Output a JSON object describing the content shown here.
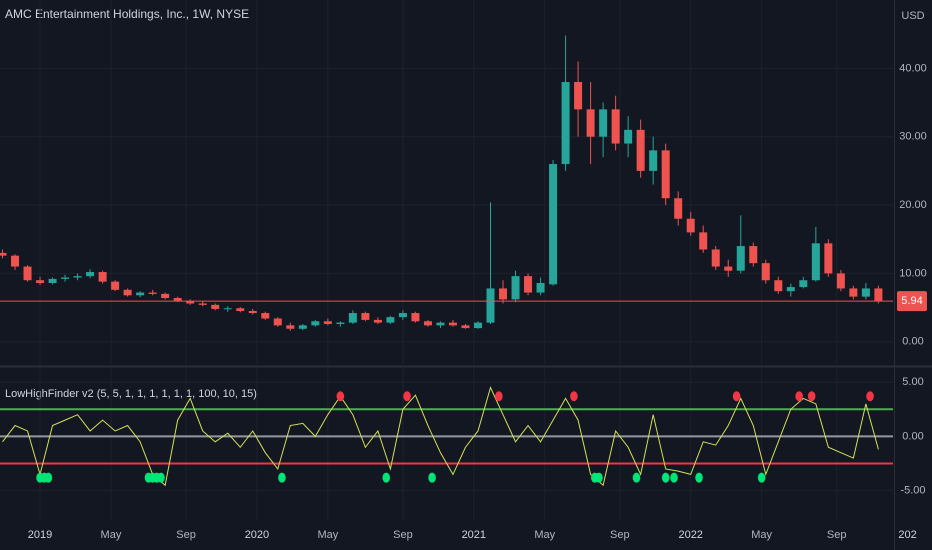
{
  "chart_data": [
    {
      "type": "candlestick",
      "title": "AMC Entertainment Holdings, Inc., 1W, NYSE",
      "currency": "USD",
      "x": [
        -9,
        -6,
        -3,
        0,
        3,
        6,
        9,
        12,
        15,
        18,
        21,
        24,
        27,
        30,
        33,
        36,
        39,
        42,
        45,
        48,
        51,
        54,
        57,
        60,
        63,
        66,
        69,
        72,
        75,
        78,
        81,
        84,
        87,
        90,
        93,
        96,
        99,
        102,
        105,
        108,
        111,
        114,
        117,
        120,
        123,
        126,
        129,
        132,
        135,
        138,
        141,
        144,
        147,
        150,
        153,
        156,
        159,
        162,
        165,
        168,
        171,
        174,
        177,
        180,
        183,
        186,
        189,
        192,
        195,
        198,
        201
      ],
      "open": [
        13,
        12.6,
        11,
        9,
        8.6,
        9.2,
        9.4,
        9.6,
        10.2,
        8.8,
        7.6,
        6.8,
        7.2,
        7,
        6.4,
        6,
        5.6,
        5.4,
        4.8,
        4.9,
        4.5,
        4.2,
        3.4,
        2.4,
        1.9,
        2.4,
        3,
        2.6,
        2.8,
        4.2,
        3.2,
        2.8,
        3.6,
        4.2,
        3,
        2.4,
        2.8,
        2.4,
        2,
        2.8,
        7.8,
        6.2,
        9.6,
        7.2,
        8.4,
        26,
        38,
        34,
        30,
        34,
        29,
        31,
        25,
        28,
        21,
        18,
        16,
        13.5,
        11,
        10.4,
        14,
        11.5,
        9,
        7.4,
        8,
        9,
        14.4,
        10,
        7.8,
        6.6,
        7.8
      ],
      "high": [
        13.5,
        12.8,
        11.2,
        9.5,
        9.4,
        9.8,
        10,
        10.6,
        10.4,
        9,
        7.8,
        7.4,
        7.6,
        7.2,
        6.6,
        6.2,
        5.9,
        5.6,
        5.2,
        5.1,
        4.8,
        4.4,
        3.6,
        2.8,
        2.6,
        3.2,
        3.4,
        3,
        4.6,
        4.4,
        3.6,
        3.8,
        4.6,
        4.4,
        3.2,
        3,
        3.2,
        2.6,
        3,
        20.4,
        9,
        10.4,
        10,
        9.4,
        26.6,
        44.8,
        41,
        38,
        35,
        36,
        33,
        32.5,
        30,
        29,
        22,
        19,
        17,
        14,
        12,
        18.5,
        14.5,
        12,
        9.5,
        8.5,
        9.5,
        16.8,
        15,
        10.5,
        8.2,
        8.6,
        8.2
      ],
      "low": [
        12.2,
        10.5,
        8.8,
        8.3,
        8.4,
        8.8,
        9,
        9.3,
        8.5,
        7.4,
        6.6,
        6.5,
        6.8,
        6.2,
        5.8,
        5.4,
        5.2,
        4.6,
        4.4,
        4.3,
        4,
        3.2,
        2.2,
        1.6,
        1.7,
        2.2,
        2.4,
        2.2,
        2.6,
        3,
        2.6,
        2.6,
        3.2,
        2.8,
        2.2,
        2,
        2.2,
        1.9,
        1.9,
        2.6,
        5.6,
        5.8,
        6.8,
        6.8,
        8.2,
        25,
        30,
        26,
        27,
        28,
        27,
        24,
        23,
        20,
        17,
        15.5,
        13,
        10.5,
        9.5,
        10,
        11,
        8.5,
        7,
        6.6,
        7.8,
        8.8,
        9.5,
        7.4,
        6.2,
        6.2,
        5.6
      ],
      "close": [
        12.6,
        11,
        9,
        8.6,
        9.2,
        9.4,
        9.6,
        10.2,
        8.8,
        7.6,
        6.8,
        7.2,
        7,
        6.4,
        6,
        5.6,
        5.4,
        4.8,
        4.9,
        4.5,
        4.2,
        3.4,
        2.4,
        1.9,
        2.4,
        3,
        2.6,
        2.8,
        4.2,
        3.2,
        2.8,
        3.6,
        4.2,
        3,
        2.4,
        2.8,
        2.4,
        2,
        2.8,
        7.8,
        6.2,
        9.6,
        7.2,
        8.6,
        26,
        38,
        34,
        30,
        34,
        29,
        31,
        25,
        28,
        21,
        18,
        16,
        13.5,
        11,
        10.4,
        14,
        11.5,
        9,
        7.4,
        8,
        9,
        14.4,
        10,
        7.8,
        6.6,
        7.8,
        5.94
      ],
      "up_color": "#26a69a",
      "down_color": "#ef5350",
      "last_price": 5.94,
      "xlim": [
        -9.6,
        204.5
      ],
      "xticks": [
        {
          "value": 0,
          "label": "2019"
        },
        {
          "value": 17,
          "label": "May"
        },
        {
          "value": 35,
          "label": "Sep"
        },
        {
          "value": 52,
          "label": "2020"
        },
        {
          "value": 69,
          "label": "May"
        },
        {
          "value": 87,
          "label": "Sep"
        },
        {
          "value": 104,
          "label": "2021"
        },
        {
          "value": 121,
          "label": "May"
        },
        {
          "value": 139,
          "label": "Sep"
        },
        {
          "value": 156,
          "label": "2022"
        },
        {
          "value": 173,
          "label": "May"
        },
        {
          "value": 191,
          "label": "Sep"
        },
        {
          "value": 208,
          "label": "202"
        }
      ],
      "ylim": [
        -3.4,
        50
      ],
      "yticks": [
        {
          "value": 0,
          "label": "0.00"
        },
        {
          "value": 10,
          "label": "10.00"
        },
        {
          "value": 20,
          "label": "20.00"
        },
        {
          "value": 30,
          "label": "30.00"
        },
        {
          "value": 40,
          "label": "40.00"
        }
      ],
      "grid": true
    },
    {
      "type": "line",
      "title": "LowHighFinder v2 (5, 5, 1, 1, 1, 1, 1, 1, 100, 10, 15)",
      "x": [
        -9,
        -6,
        -3,
        0,
        3,
        6,
        9,
        12,
        15,
        18,
        21,
        24,
        27,
        30,
        33,
        36,
        39,
        42,
        45,
        48,
        51,
        54,
        57,
        60,
        63,
        66,
        69,
        72,
        75,
        78,
        81,
        84,
        87,
        90,
        93,
        96,
        99,
        102,
        105,
        108,
        111,
        114,
        117,
        120,
        123,
        126,
        129,
        132,
        135,
        138,
        141,
        144,
        147,
        150,
        153,
        156,
        159,
        162,
        165,
        168,
        171,
        174,
        177,
        180,
        183,
        186,
        189,
        192,
        195,
        198,
        201
      ],
      "values": [
        -0.5,
        1,
        0.5,
        -3.5,
        1,
        1.5,
        2,
        0.5,
        1.5,
        0.5,
        1,
        -0.5,
        -3.5,
        -4.5,
        1.5,
        3.5,
        0.5,
        -0.5,
        0.3,
        -1,
        0.5,
        -1.5,
        -3,
        1,
        1.2,
        0,
        2,
        3.7,
        2,
        -1,
        0.5,
        -3,
        2.5,
        3.8,
        1,
        -1.5,
        -3.5,
        -1,
        0.5,
        4.5,
        2,
        -0.5,
        1,
        -0.5,
        1.5,
        3.5,
        1.5,
        -3.5,
        -4.5,
        0.5,
        -1,
        -3.5,
        2,
        -3,
        -3.2,
        -3.5,
        -0.5,
        -0.8,
        1,
        3.5,
        1,
        -3.5,
        -0.5,
        2.5,
        3.5,
        3,
        -1,
        -1.5,
        -2,
        3,
        -1.2
      ],
      "color": "#d4e157",
      "levels": [
        {
          "value": 2.5,
          "color": "#4caf50"
        },
        {
          "value": 0,
          "color": "#9598a1"
        },
        {
          "value": -2.5,
          "color": "#f23645"
        }
      ],
      "high_signals": {
        "x": [
          72,
          88,
          110,
          128,
          167,
          182,
          185,
          199
        ],
        "values": [
          3.7,
          3.7,
          3.7,
          3.7,
          3.7,
          3.7,
          3.7,
          3.7
        ],
        "color": "#f23645"
      },
      "low_signals": {
        "x": [
          0,
          1,
          2,
          26,
          27,
          28,
          29,
          58,
          83,
          94,
          133,
          134,
          143,
          150,
          152,
          158,
          173
        ],
        "values": [
          -3.8,
          -3.8,
          -3.8,
          -3.8,
          -3.8,
          -3.8,
          -3.8,
          -3.8,
          -3.8,
          -3.8,
          -3.8,
          -3.8,
          -3.8,
          -3.8,
          -3.8,
          -3.8,
          -3.8
        ],
        "color": "#00e676"
      },
      "xlim": [
        -9.6,
        204.5
      ],
      "ylim": [
        -7.7,
        6.3
      ],
      "yticks": [
        {
          "value": -5,
          "label": "-5.00"
        },
        {
          "value": 0,
          "label": "0.00"
        },
        {
          "value": 5,
          "label": "5.00"
        }
      ],
      "grid": true
    }
  ]
}
